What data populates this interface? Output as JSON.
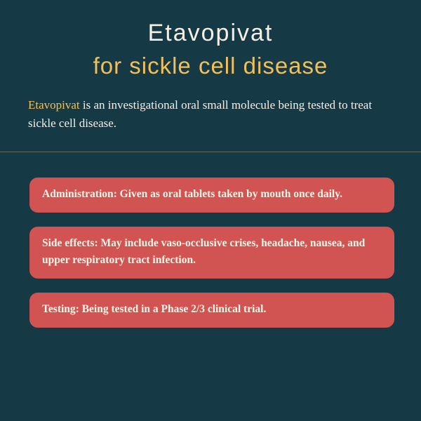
{
  "colors": {
    "background": "#163946",
    "title_text": "#f5efe6",
    "subtitle_text": "#f0c05a",
    "body_text": "#f5efe6",
    "highlight_text": "#f0c05a",
    "divider": "#6b6a57",
    "card_bg": "#d15452",
    "card_text": "#fdf4e8"
  },
  "typography": {
    "title_fontsize": 34,
    "subtitle_fontsize": 33,
    "intro_fontsize": 17,
    "card_fontsize": 15.5
  },
  "header": {
    "title": "Etavopivat",
    "subtitle": "for sickle cell disease"
  },
  "intro": {
    "highlight": "Etavopivat",
    "rest": " is an investigational oral small molecule being tested to treat sickle cell disease."
  },
  "cards": [
    {
      "label": "Administration:",
      "text": " Given as oral tablets taken by mouth once daily."
    },
    {
      "label": "Side effects:",
      "text": " May include vaso-occlusive crises, headache, nausea, and upper respiratory tract infection."
    },
    {
      "label": "Testing:",
      "text": " Being tested in a Phase 2/3 clinical trial."
    }
  ]
}
